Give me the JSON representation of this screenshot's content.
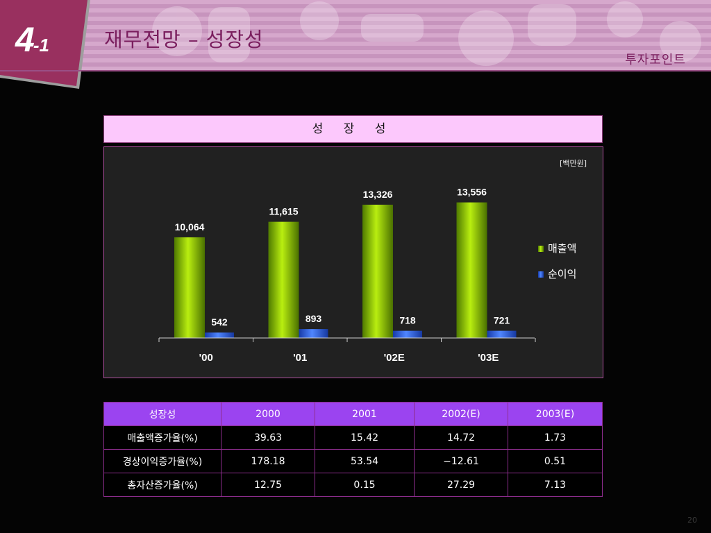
{
  "header": {
    "badge_number": "4",
    "badge_suffix": "-1",
    "title": "재무전망 – 성장성",
    "section": "투자포인트"
  },
  "chart_caption": "성 장 성",
  "chart_data": {
    "type": "bar",
    "title": "성 장 성",
    "unit_label": "[백만원]",
    "categories": [
      "'00",
      "'01",
      "'02E",
      "'03E"
    ],
    "series": [
      {
        "name": "매출액",
        "values": [
          10064,
          11615,
          13326,
          13556
        ],
        "labels": [
          "10,064",
          "11,615",
          "13,326",
          "13,556"
        ],
        "color": "#8bbf00"
      },
      {
        "name": "순이익",
        "values": [
          542,
          893,
          718,
          721
        ],
        "labels": [
          "542",
          "893",
          "718",
          "721"
        ],
        "color": "#2f5fe6"
      }
    ],
    "ylim": [
      0,
      17000
    ],
    "legend": "right",
    "grid": false
  },
  "table": {
    "headers": [
      "성장성",
      "2000",
      "2001",
      "2002(E)",
      "2003(E)"
    ],
    "rows": [
      [
        "매출액증가율(%)",
        "39.63",
        "15.42",
        "14.72",
        "1.73"
      ],
      [
        "경상이익증가율(%)",
        "178.18",
        "53.54",
        "−12.61",
        "0.51"
      ],
      [
        "총자산증가율(%)",
        "12.75",
        "0.15",
        "27.29",
        "7.13"
      ]
    ]
  },
  "page_number": "20"
}
